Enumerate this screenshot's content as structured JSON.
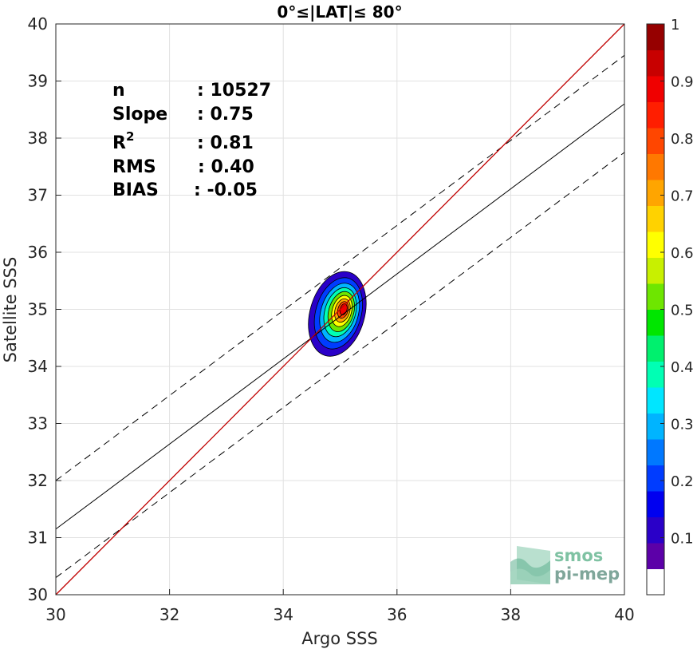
{
  "chart_data": {
    "type": "scatter",
    "title": "0°≤|LAT|≤ 80°",
    "xlabel": "Argo SSS",
    "ylabel": "Satellite SSS",
    "xlim": [
      30,
      40
    ],
    "ylim": [
      30,
      40
    ],
    "xticks": [
      "30",
      "32",
      "34",
      "36",
      "38",
      "40"
    ],
    "yticks": [
      "30",
      "31",
      "32",
      "33",
      "34",
      "35",
      "36",
      "37",
      "38",
      "39",
      "40"
    ],
    "grid": true,
    "stats": [
      {
        "label": "n",
        "sep": ": ",
        "value": "10527"
      },
      {
        "label": "Slope",
        "sep": ": ",
        "value": "0.75"
      },
      {
        "label": "R",
        "sup": "2",
        "sep": ": ",
        "value": "0.81"
      },
      {
        "label": "RMS",
        "sep": ": ",
        "value": "0.40"
      },
      {
        "label": "BIAS",
        "sep": ": ",
        "value": "-0.05"
      }
    ],
    "lines": {
      "identity": {
        "x": [
          30,
          40
        ],
        "y": [
          30,
          40
        ],
        "color": "#c00000"
      },
      "fit": {
        "x": [
          30,
          40
        ],
        "y": [
          31.15,
          38.6
        ],
        "color": "#000000"
      },
      "fit_upper": {
        "x": [
          30,
          40
        ],
        "y": [
          32.0,
          39.45
        ],
        "color": "#000000",
        "dash": true
      },
      "fit_lower": {
        "x": [
          30,
          40
        ],
        "y": [
          30.3,
          37.75
        ],
        "color": "#000000",
        "dash": true
      }
    },
    "density": {
      "center": [
        35.05,
        34.95
      ],
      "levels": [
        {
          "level": 0.05,
          "rx": 0.48,
          "ry": 0.76,
          "cx": 34.95,
          "cy": 34.92
        },
        {
          "level": 0.15,
          "rx": 0.4,
          "ry": 0.64,
          "cx": 34.97,
          "cy": 34.93
        },
        {
          "level": 0.25,
          "rx": 0.33,
          "ry": 0.53,
          "cx": 34.99,
          "cy": 34.94
        },
        {
          "level": 0.35,
          "rx": 0.27,
          "ry": 0.44,
          "cx": 35.0,
          "cy": 34.95
        },
        {
          "level": 0.45,
          "rx": 0.22,
          "ry": 0.36,
          "cx": 35.02,
          "cy": 34.96
        },
        {
          "level": 0.55,
          "rx": 0.17,
          "ry": 0.28,
          "cx": 35.03,
          "cy": 34.97
        },
        {
          "level": 0.65,
          "rx": 0.13,
          "ry": 0.21,
          "cx": 35.04,
          "cy": 34.98
        },
        {
          "level": 0.75,
          "rx": 0.09,
          "ry": 0.15,
          "cx": 35.05,
          "cy": 34.99
        },
        {
          "level": 0.85,
          "rx": 0.06,
          "ry": 0.1,
          "cx": 35.06,
          "cy": 35.0
        }
      ]
    },
    "colorbar": {
      "range": [
        0,
        1
      ],
      "ticks": [
        "0.1",
        "0.2",
        "0.3",
        "0.4",
        "0.5",
        "0.6",
        "0.7",
        "0.8",
        "0.9",
        "1"
      ],
      "colors": [
        "#ffffff",
        "#5c00a8",
        "#2a00c8",
        "#0000f0",
        "#003cff",
        "#0078ff",
        "#00b4ff",
        "#00e6ff",
        "#00ffb4",
        "#00f06e",
        "#00e600",
        "#6ee600",
        "#c8f000",
        "#ffff00",
        "#ffd200",
        "#ffa500",
        "#ff7800",
        "#ff4600",
        "#ff1e00",
        "#f00000",
        "#c80000",
        "#960000"
      ]
    }
  },
  "logo": {
    "line1": "smos",
    "line2": "pi-mep"
  }
}
